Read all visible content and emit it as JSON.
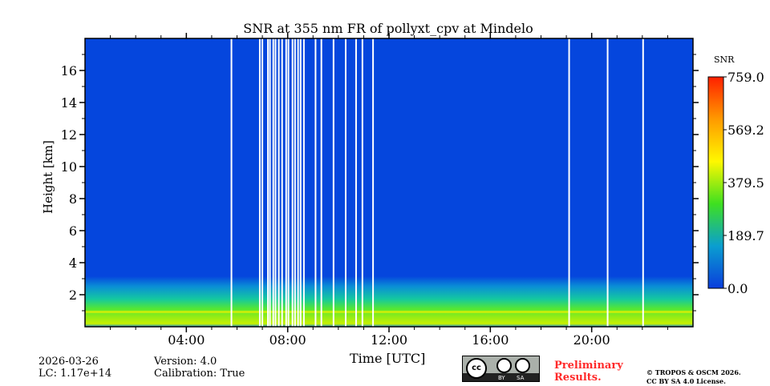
{
  "chart_data": {
    "type": "heatmap",
    "title": "SNR at 355 nm FR of pollyxt_cpv at Mindelo",
    "xlabel": "Time [UTC]",
    "ylabel": "Height [km]",
    "xlim_hours": [
      0,
      24
    ],
    "ylim_km": [
      0,
      18
    ],
    "xticks": [
      {
        "h": 4,
        "label": "04:00"
      },
      {
        "h": 8,
        "label": "08:00"
      },
      {
        "h": 12,
        "label": "12:00"
      },
      {
        "h": 16,
        "label": "16:00"
      },
      {
        "h": 20,
        "label": "20:00"
      }
    ],
    "yticks": [
      {
        "v": 2,
        "label": "2"
      },
      {
        "v": 4,
        "label": "4"
      },
      {
        "v": 6,
        "label": "6"
      },
      {
        "v": 8,
        "label": "8"
      },
      {
        "v": 10,
        "label": "10"
      },
      {
        "v": 12,
        "label": "12"
      },
      {
        "v": 14,
        "label": "14"
      },
      {
        "v": 16,
        "label": "16"
      }
    ],
    "colorbar": {
      "label": "SNR",
      "min": 0.0,
      "max": 759.0,
      "ticks": [
        "0.0",
        "189.7",
        "379.5",
        "569.2",
        "759.0"
      ],
      "colormap": [
        "#0a3ddc",
        "#0a9ed0",
        "#3ee020",
        "#fff800",
        "#ff9a00",
        "#ff2000"
      ]
    },
    "background_snr_color": "#0546dd",
    "boundary_layer_top_km": 0.9,
    "data_gaps_hours": [
      5.78,
      6.9,
      7.0,
      7.22,
      7.3,
      7.43,
      7.52,
      7.65,
      7.78,
      7.94,
      8.03,
      8.19,
      8.29,
      8.41,
      8.51,
      8.64,
      9.1,
      9.33,
      9.81,
      10.29,
      10.7,
      10.95,
      11.37,
      19.11,
      20.63,
      22.03
    ]
  },
  "footer": {
    "date": "2026-03-26",
    "lc": "LC: 1.17e+14",
    "version": "Version: 4.0",
    "calibration": "Calibration: True",
    "preliminary": [
      "Preliminary",
      "Results."
    ],
    "copyright": [
      "© TROPOS & OSCM 2026.",
      "CC BY SA 4.0 License."
    ],
    "cc_by": "BY",
    "cc_sa": "SA",
    "cc_logo": "cc"
  }
}
